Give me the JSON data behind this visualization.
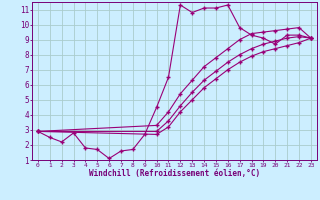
{
  "xlabel": "Windchill (Refroidissement éolien,°C)",
  "bg_color": "#cceeff",
  "grid_color": "#aacccc",
  "line_color": "#990077",
  "xlim": [
    -0.5,
    23.5
  ],
  "ylim": [
    1,
    11.5
  ],
  "xticks": [
    0,
    1,
    2,
    3,
    4,
    5,
    6,
    7,
    8,
    9,
    10,
    11,
    12,
    13,
    14,
    15,
    16,
    17,
    18,
    19,
    20,
    21,
    22,
    23
  ],
  "yticks": [
    1,
    2,
    3,
    4,
    5,
    6,
    7,
    8,
    9,
    10,
    11
  ],
  "line1_x": [
    0,
    1,
    2,
    3,
    4,
    5,
    6,
    7,
    8,
    9,
    10,
    11,
    12,
    13,
    14,
    15,
    16,
    17,
    18,
    19,
    20,
    21,
    22,
    23
  ],
  "line1_y": [
    2.9,
    2.5,
    2.2,
    2.8,
    1.8,
    1.7,
    1.1,
    1.6,
    1.7,
    2.7,
    4.5,
    6.5,
    11.3,
    10.8,
    11.1,
    11.1,
    11.3,
    9.8,
    9.3,
    9.1,
    8.7,
    9.3,
    9.3,
    9.1
  ],
  "line2_x": [
    0,
    10,
    11,
    12,
    13,
    14,
    15,
    16,
    17,
    18,
    19,
    20,
    21,
    22,
    23
  ],
  "line2_y": [
    2.9,
    3.3,
    4.2,
    5.4,
    6.3,
    7.2,
    7.8,
    8.4,
    9.0,
    9.4,
    9.5,
    9.6,
    9.7,
    9.8,
    9.1
  ],
  "line3_x": [
    0,
    10,
    11,
    12,
    13,
    14,
    15,
    16,
    17,
    18,
    19,
    20,
    21,
    22,
    23
  ],
  "line3_y": [
    2.9,
    2.9,
    3.6,
    4.6,
    5.5,
    6.3,
    6.9,
    7.5,
    8.0,
    8.4,
    8.7,
    8.9,
    9.1,
    9.2,
    9.1
  ],
  "line4_x": [
    0,
    10,
    11,
    12,
    13,
    14,
    15,
    16,
    17,
    18,
    19,
    20,
    21,
    22,
    23
  ],
  "line4_y": [
    2.9,
    2.7,
    3.2,
    4.2,
    5.0,
    5.8,
    6.4,
    7.0,
    7.5,
    7.9,
    8.2,
    8.4,
    8.6,
    8.8,
    9.1
  ]
}
